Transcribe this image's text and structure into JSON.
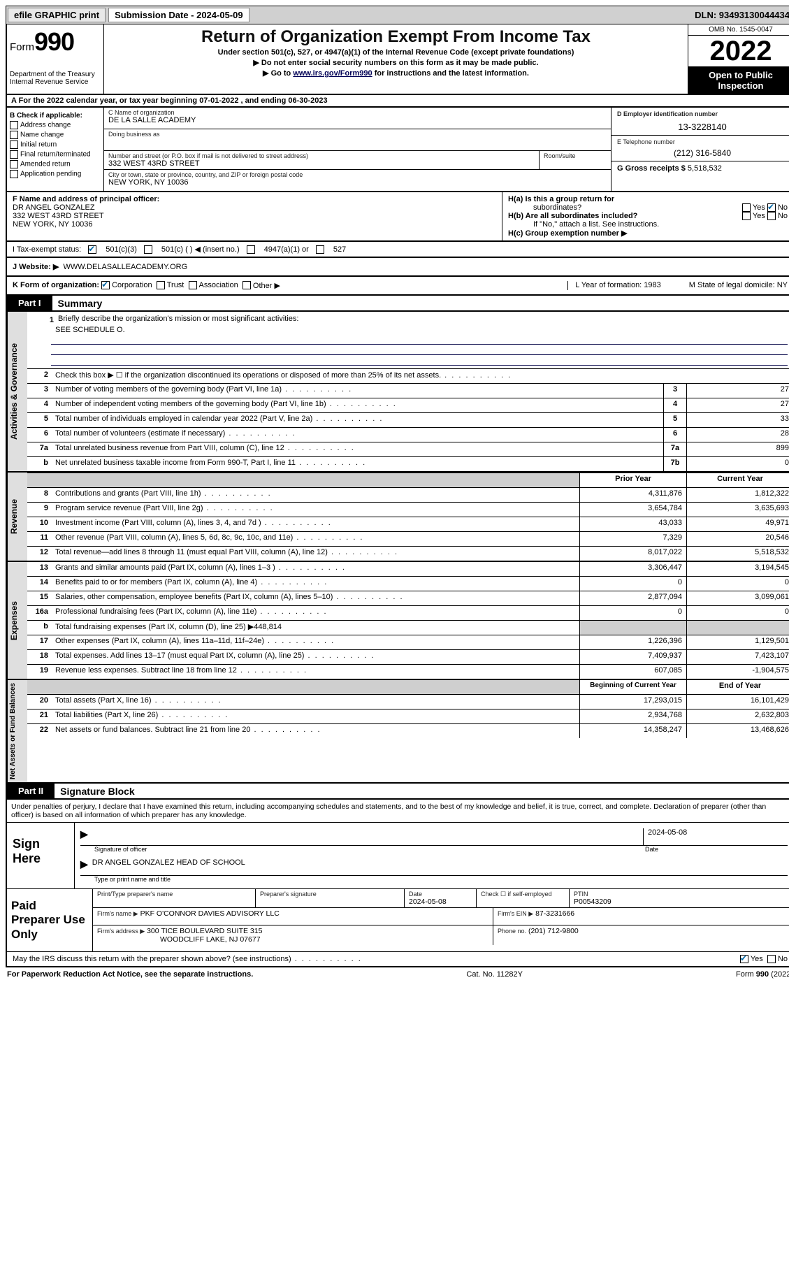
{
  "top_bar": {
    "efile_label": "efile GRAPHIC print",
    "submission_label": "Submission Date - 2024-05-09",
    "dln": "DLN: 93493130044434"
  },
  "header": {
    "form_prefix": "Form",
    "form_number": "990",
    "dept": "Department of the Treasury",
    "irs": "Internal Revenue Service",
    "title": "Return of Organization Exempt From Income Tax",
    "sub1": "Under section 501(c), 527, or 4947(a)(1) of the Internal Revenue Code (except private foundations)",
    "sub2": "▶ Do not enter social security numbers on this form as it may be made public.",
    "sub3_pre": "▶ Go to ",
    "sub3_link": "www.irs.gov/Form990",
    "sub3_post": " for instructions and the latest information.",
    "omb": "OMB No. 1545-0047",
    "year": "2022",
    "inspection1": "Open to Public",
    "inspection2": "Inspection"
  },
  "row_a": "A  For the 2022 calendar year, or tax year beginning 07-01-2022  , and ending 06-30-2023",
  "section_b": {
    "label": "B Check if applicable:",
    "items": [
      "Address change",
      "Name change",
      "Initial return",
      "Final return/terminated",
      "Amended return",
      "Application pending"
    ]
  },
  "section_c": {
    "name_label": "C Name of organization",
    "name_value": "DE LA SALLE ACADEMY",
    "dba_label": "Doing business as",
    "street_label": "Number and street (or P.O. box if mail is not delivered to street address)",
    "street_value": "332 WEST 43RD STREET",
    "room_label": "Room/suite",
    "city_label": "City or town, state or province, country, and ZIP or foreign postal code",
    "city_value": "NEW YORK, NY  10036"
  },
  "section_d": {
    "label": "D Employer identification number",
    "value": "13-3228140"
  },
  "section_e": {
    "label": "E Telephone number",
    "value": "(212) 316-5840"
  },
  "section_g": {
    "label": "G Gross receipts $",
    "value": "5,518,532"
  },
  "section_f": {
    "label": "F Name and address of principal officer:",
    "name": "DR ANGEL GONZALEZ",
    "addr1": "332 WEST 43RD STREET",
    "addr2": "NEW YORK, NY  10036"
  },
  "section_h": {
    "ha_label": "H(a)  Is this a group return for",
    "ha_sub": "subordinates?",
    "hb_label": "H(b)  Are all subordinates included?",
    "hb_note": "If \"No,\" attach a list. See instructions.",
    "hc_label": "H(c)  Group exemption number ▶",
    "yes": "Yes",
    "no": "No"
  },
  "row_i": {
    "label": "I    Tax-exempt status:",
    "opt1": "501(c)(3)",
    "opt2": "501(c) (  ) ◀ (insert no.)",
    "opt3": "4947(a)(1) or",
    "opt4": "527"
  },
  "row_j": {
    "label": "J   Website: ▶",
    "value": "WWW.DELASALLEACADEMY.ORG"
  },
  "row_k": {
    "label": "K Form of organization:",
    "opt1": "Corporation",
    "opt2": "Trust",
    "opt3": "Association",
    "opt4": "Other ▶",
    "l_label": "L Year of formation: 1983",
    "m_label": "M State of legal domicile: NY"
  },
  "part1": {
    "tab": "Part I",
    "title": "Summary"
  },
  "sections": {
    "gov": "Activities & Governance",
    "rev": "Revenue",
    "exp": "Expenses",
    "net": "Net Assets or Fund Balances"
  },
  "mission": {
    "num": "1",
    "label": "Briefly describe the organization's mission or most significant activities:",
    "value": "SEE SCHEDULE O."
  },
  "governance_rows": [
    {
      "n": "2",
      "t": "Check this box ▶ ☐  if the organization discontinued its operations or disposed of more than 25% of its net assets.",
      "box": "",
      "v": ""
    },
    {
      "n": "3",
      "t": "Number of voting members of the governing body (Part VI, line 1a)",
      "box": "3",
      "v": "27"
    },
    {
      "n": "4",
      "t": "Number of independent voting members of the governing body (Part VI, line 1b)",
      "box": "4",
      "v": "27"
    },
    {
      "n": "5",
      "t": "Total number of individuals employed in calendar year 2022 (Part V, line 2a)",
      "box": "5",
      "v": "33"
    },
    {
      "n": "6",
      "t": "Total number of volunteers (estimate if necessary)",
      "box": "6",
      "v": "28"
    },
    {
      "n": "7a",
      "t": "Total unrelated business revenue from Part VIII, column (C), line 12",
      "box": "7a",
      "v": "899"
    },
    {
      "n": "b",
      "t": "Net unrelated business taxable income from Form 990-T, Part I, line 11",
      "box": "7b",
      "v": "0"
    }
  ],
  "columns_header": {
    "prior": "Prior Year",
    "current": "Current Year"
  },
  "revenue_rows": [
    {
      "n": "8",
      "t": "Contributions and grants (Part VIII, line 1h)",
      "p": "4,311,876",
      "c": "1,812,322"
    },
    {
      "n": "9",
      "t": "Program service revenue (Part VIII, line 2g)",
      "p": "3,654,784",
      "c": "3,635,693"
    },
    {
      "n": "10",
      "t": "Investment income (Part VIII, column (A), lines 3, 4, and 7d )",
      "p": "43,033",
      "c": "49,971"
    },
    {
      "n": "11",
      "t": "Other revenue (Part VIII, column (A), lines 5, 6d, 8c, 9c, 10c, and 11e)",
      "p": "7,329",
      "c": "20,546"
    },
    {
      "n": "12",
      "t": "Total revenue—add lines 8 through 11 (must equal Part VIII, column (A), line 12)",
      "p": "8,017,022",
      "c": "5,518,532"
    }
  ],
  "expense_rows": [
    {
      "n": "13",
      "t": "Grants and similar amounts paid (Part IX, column (A), lines 1–3 )",
      "p": "3,306,447",
      "c": "3,194,545"
    },
    {
      "n": "14",
      "t": "Benefits paid to or for members (Part IX, column (A), line 4)",
      "p": "0",
      "c": "0"
    },
    {
      "n": "15",
      "t": "Salaries, other compensation, employee benefits (Part IX, column (A), lines 5–10)",
      "p": "2,877,094",
      "c": "3,099,061"
    },
    {
      "n": "16a",
      "t": "Professional fundraising fees (Part IX, column (A), line 11e)",
      "p": "0",
      "c": "0"
    },
    {
      "n": "b",
      "t": "Total fundraising expenses (Part IX, column (D), line 25) ▶448,814",
      "p": "",
      "c": "",
      "shaded": true
    },
    {
      "n": "17",
      "t": "Other expenses (Part IX, column (A), lines 11a–11d, 11f–24e)",
      "p": "1,226,396",
      "c": "1,129,501"
    },
    {
      "n": "18",
      "t": "Total expenses. Add lines 13–17 (must equal Part IX, column (A), line 25)",
      "p": "7,409,937",
      "c": "7,423,107"
    },
    {
      "n": "19",
      "t": "Revenue less expenses. Subtract line 18 from line 12",
      "p": "607,085",
      "c": "-1,904,575"
    }
  ],
  "net_header": {
    "prior": "Beginning of Current Year",
    "current": "End of Year"
  },
  "net_rows": [
    {
      "n": "20",
      "t": "Total assets (Part X, line 16)",
      "p": "17,293,015",
      "c": "16,101,429"
    },
    {
      "n": "21",
      "t": "Total liabilities (Part X, line 26)",
      "p": "2,934,768",
      "c": "2,632,803"
    },
    {
      "n": "22",
      "t": "Net assets or fund balances. Subtract line 21 from line 20",
      "p": "14,358,247",
      "c": "13,468,626"
    }
  ],
  "part2": {
    "tab": "Part II",
    "title": "Signature Block"
  },
  "declaration": "Under penalties of perjury, I declare that I have examined this return, including accompanying schedules and statements, and to the best of my knowledge and belief, it is true, correct, and complete. Declaration of preparer (other than officer) is based on all information of which preparer has any knowledge.",
  "sign": {
    "sign_here": "Sign Here",
    "sig_label": "Signature of officer",
    "date_label": "Date",
    "date_value": "2024-05-08",
    "name_value": "DR ANGEL GONZALEZ  HEAD OF SCHOOL",
    "name_label": "Type or print name and title"
  },
  "paid": {
    "title": "Paid Preparer Use Only",
    "print_name": "Print/Type preparer's name",
    "sig": "Preparer's signature",
    "date_label": "Date",
    "date_value": "2024-05-08",
    "check_label": "Check ☐ if self-employed",
    "ptin_label": "PTIN",
    "ptin_value": "P00543209",
    "firm_name_label": "Firm's name    ▶",
    "firm_name": "PKF O'CONNOR DAVIES ADVISORY LLC",
    "firm_ein_label": "Firm's EIN ▶",
    "firm_ein": "87-3231666",
    "firm_addr_label": "Firm's address ▶",
    "firm_addr1": "300 TICE BOULEVARD SUITE 315",
    "firm_addr2": "WOODCLIFF LAKE, NJ  07677",
    "phone_label": "Phone no.",
    "phone_value": "(201) 712-9800"
  },
  "discuss": {
    "text": "May the IRS discuss this return with the preparer shown above? (see instructions)",
    "yes": "Yes",
    "no": "No"
  },
  "footer": {
    "left": "For Paperwork Reduction Act Notice, see the separate instructions.",
    "mid": "Cat. No. 11282Y",
    "right": "Form 990 (2022)"
  }
}
